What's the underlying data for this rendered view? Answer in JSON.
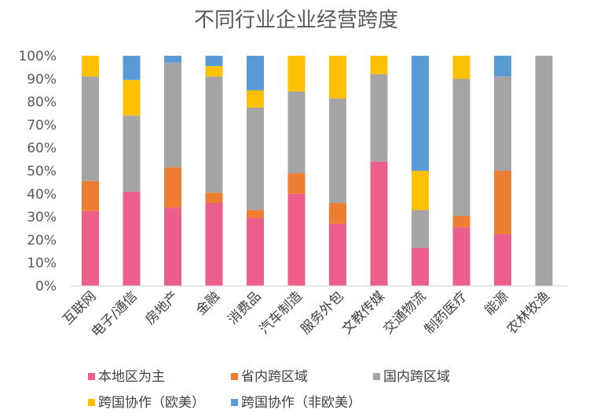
{
  "chart_data": {
    "type": "bar",
    "stacked": true,
    "percent": true,
    "title": "不同行业企业经营跨度",
    "xlabel": "",
    "ylabel": "",
    "ylim": [
      0,
      100
    ],
    "yticks": [
      "0%",
      "10%",
      "20%",
      "30%",
      "40%",
      "50%",
      "60%",
      "70%",
      "80%",
      "90%",
      "100%"
    ],
    "categories": [
      "互联网",
      "电子/通信",
      "房地产",
      "金融",
      "消费品",
      "汽车制造",
      "服务外包",
      "文教传媒",
      "交通物流",
      "制药医疗",
      "能源",
      "农林牧渔"
    ],
    "legend_position": "bottom",
    "series": [
      {
        "name": "本地区为主",
        "color": "#ec5f8a",
        "values": [
          32.5,
          41,
          34,
          36,
          29.5,
          40,
          27,
          54,
          16.5,
          25.5,
          22.5,
          0
        ]
      },
      {
        "name": "省内跨区域",
        "color": "#ed7d31",
        "values": [
          13,
          0,
          17.5,
          4.5,
          3.5,
          9,
          9,
          0,
          0,
          5,
          27.5,
          0
        ]
      },
      {
        "name": "国内跨区域",
        "color": "#a5a5a5",
        "values": [
          45.5,
          33,
          45.5,
          50.5,
          44.5,
          35.5,
          45.5,
          38,
          16.5,
          59.5,
          41,
          100
        ]
      },
      {
        "name": "跨国协作（欧美）",
        "color": "#ffc000",
        "values": [
          9,
          15.5,
          0,
          4.5,
          7.5,
          15.5,
          18.5,
          8,
          17,
          10,
          0,
          0
        ]
      },
      {
        "name": "跨国协作（非欧美）",
        "color": "#5b9bd5",
        "values": [
          0,
          10.5,
          3,
          4.5,
          15,
          0,
          0,
          0,
          50,
          0,
          9,
          0
        ]
      }
    ]
  }
}
